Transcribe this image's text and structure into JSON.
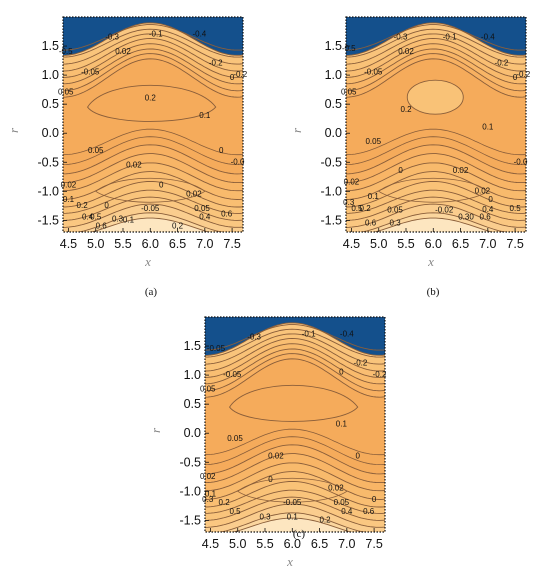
{
  "chart_data": [
    {
      "type": "contour",
      "caption": "(a)",
      "xlabel": "x",
      "ylabel": "r",
      "xlim": [
        4.4,
        7.7
      ],
      "ylim": [
        -1.7,
        2.0
      ],
      "xticks": [
        "4.5",
        "5.0",
        "5.5",
        "6.0",
        "6.5",
        "7.0",
        "7.5"
      ],
      "yticks": [
        "1.5",
        "1.0",
        "0.5",
        "0.0",
        "-0.5",
        "-1.0",
        "-1.5"
      ],
      "contour_labels": [
        {
          "text": "-0.3",
          "x": 5.3,
          "y": 1.65
        },
        {
          "text": "-0.1",
          "x": 6.1,
          "y": 1.7
        },
        {
          "text": "-0.4",
          "x": 6.9,
          "y": 1.7
        },
        {
          "text": "-0.5",
          "x": 4.45,
          "y": 1.4
        },
        {
          "text": "0.02",
          "x": 5.5,
          "y": 1.4
        },
        {
          "text": "-0.2",
          "x": 7.2,
          "y": 1.2
        },
        {
          "text": "-0.05",
          "x": 4.9,
          "y": 1.05
        },
        {
          "text": "0",
          "x": 7.5,
          "y": 0.95
        },
        {
          "text": "-0.2",
          "x": 7.65,
          "y": 1.0
        },
        {
          "text": "0.05",
          "x": 4.45,
          "y": 0.7
        },
        {
          "text": "0.2",
          "x": 6.0,
          "y": 0.6
        },
        {
          "text": "0.1",
          "x": 7.0,
          "y": 0.3
        },
        {
          "text": "0.05",
          "x": 5.0,
          "y": -0.3
        },
        {
          "text": "0",
          "x": 7.3,
          "y": -0.3
        },
        {
          "text": "0.02",
          "x": 5.7,
          "y": -0.55
        },
        {
          "text": "-0.0",
          "x": 7.6,
          "y": -0.5
        },
        {
          "text": "0.02",
          "x": 4.5,
          "y": -0.9
        },
        {
          "text": "0",
          "x": 6.2,
          "y": -0.9
        },
        {
          "text": "0.02",
          "x": 6.8,
          "y": -1.05
        },
        {
          "text": "0.1",
          "x": 4.5,
          "y": -1.15
        },
        {
          "text": "0.2",
          "x": 4.75,
          "y": -1.25
        },
        {
          "text": "0",
          "x": 5.2,
          "y": -1.25
        },
        {
          "text": "-0.05",
          "x": 6.0,
          "y": -1.3
        },
        {
          "text": "0.05",
          "x": 6.95,
          "y": -1.3
        },
        {
          "text": "0.4",
          "x": 4.85,
          "y": -1.45
        },
        {
          "text": "0.5",
          "x": 5.0,
          "y": -1.45
        },
        {
          "text": "0.3",
          "x": 5.4,
          "y": -1.48
        },
        {
          "text": "0.1",
          "x": 5.6,
          "y": -1.5
        },
        {
          "text": "0.4",
          "x": 7.0,
          "y": -1.45
        },
        {
          "text": "0.6",
          "x": 7.4,
          "y": -1.4
        },
        {
          "text": "0.6",
          "x": 5.1,
          "y": -1.6
        },
        {
          "text": "0.2",
          "x": 6.5,
          "y": -1.6
        }
      ]
    },
    {
      "type": "contour",
      "caption": "(b)",
      "xlabel": "x",
      "ylabel": "r",
      "xlim": [
        4.4,
        7.7
      ],
      "ylim": [
        -1.7,
        2.0
      ],
      "xticks": [
        "4.5",
        "5.0",
        "5.5",
        "6.0",
        "6.5",
        "7.0",
        "7.5"
      ],
      "yticks": [
        "1.5",
        "1.0",
        "0.5",
        "0.0",
        "-0.5",
        "-1.0",
        "-1.5"
      ],
      "contour_labels": [
        {
          "text": "-0.3",
          "x": 5.4,
          "y": 1.65
        },
        {
          "text": "-0.1",
          "x": 6.3,
          "y": 1.65
        },
        {
          "text": "-0.4",
          "x": 7.0,
          "y": 1.65
        },
        {
          "text": "-0.5",
          "x": 4.45,
          "y": 1.45
        },
        {
          "text": "0.02",
          "x": 5.5,
          "y": 1.4
        },
        {
          "text": "-0.2",
          "x": 7.25,
          "y": 1.2
        },
        {
          "text": "-0.05",
          "x": 4.9,
          "y": 1.05
        },
        {
          "text": "0",
          "x": 7.5,
          "y": 0.95
        },
        {
          "text": "-0.2",
          "x": 7.65,
          "y": 1.0
        },
        {
          "text": "0.05",
          "x": 4.45,
          "y": 0.7
        },
        {
          "text": "0.2",
          "x": 5.5,
          "y": 0.4
        },
        {
          "text": "0.1",
          "x": 7.0,
          "y": 0.1
        },
        {
          "text": "0.05",
          "x": 4.9,
          "y": -0.15
        },
        {
          "text": "0.02",
          "x": 6.5,
          "y": -0.65
        },
        {
          "text": "0",
          "x": 5.4,
          "y": -0.65
        },
        {
          "text": "-0.0",
          "x": 7.6,
          "y": -0.5
        },
        {
          "text": "0.02",
          "x": 4.5,
          "y": -0.85
        },
        {
          "text": "0.02",
          "x": 6.9,
          "y": -1.0
        },
        {
          "text": "0.1",
          "x": 4.9,
          "y": -1.1
        },
        {
          "text": "0",
          "x": 7.05,
          "y": -1.15
        },
        {
          "text": "0.3",
          "x": 4.45,
          "y": -1.2
        },
        {
          "text": "0.5",
          "x": 4.6,
          "y": -1.3
        },
        {
          "text": "0.2",
          "x": 4.75,
          "y": -1.3
        },
        {
          "text": "0.05",
          "x": 5.3,
          "y": -1.33
        },
        {
          "text": "-0.02",
          "x": 6.2,
          "y": -1.33
        },
        {
          "text": "0.4",
          "x": 7.0,
          "y": -1.32
        },
        {
          "text": "0.5",
          "x": 7.5,
          "y": -1.3
        },
        {
          "text": "0.6",
          "x": 4.85,
          "y": -1.55
        },
        {
          "text": "0.3",
          "x": 5.3,
          "y": -1.55
        },
        {
          "text": "0.30",
          "x": 6.6,
          "y": -1.45
        },
        {
          "text": "0.6",
          "x": 6.95,
          "y": -1.45
        }
      ]
    },
    {
      "type": "contour",
      "caption": "(c)",
      "xlabel": "x",
      "ylabel": "r",
      "xlim": [
        4.4,
        7.7
      ],
      "ylim": [
        -1.7,
        2.0
      ],
      "xticks": [
        "4.5",
        "5.0",
        "5.5",
        "6.0",
        "6.5",
        "7.0",
        "7.5"
      ],
      "yticks": [
        "1.5",
        "1.0",
        "0.5",
        "0.0",
        "-0.5",
        "-1.0",
        "-1.5"
      ],
      "contour_labels": [
        {
          "text": "-0.3",
          "x": 5.3,
          "y": 1.65
        },
        {
          "text": "-0.1",
          "x": 6.3,
          "y": 1.7
        },
        {
          "text": "-0.4",
          "x": 7.0,
          "y": 1.7
        },
        {
          "text": "-0.05",
          "x": 4.6,
          "y": 1.45
        },
        {
          "text": "-0.2",
          "x": 7.25,
          "y": 1.2
        },
        {
          "text": "-0.05",
          "x": 4.9,
          "y": 1.0
        },
        {
          "text": "0",
          "x": 6.9,
          "y": 1.05
        },
        {
          "text": "-0.2",
          "x": 7.6,
          "y": 1.0
        },
        {
          "text": "0.05",
          "x": 4.45,
          "y": 0.75
        },
        {
          "text": "0.1",
          "x": 6.9,
          "y": 0.15
        },
        {
          "text": "0.05",
          "x": 4.95,
          "y": -0.1
        },
        {
          "text": "0.02",
          "x": 5.7,
          "y": -0.4
        },
        {
          "text": "0",
          "x": 7.2,
          "y": -0.4
        },
        {
          "text": "0.02",
          "x": 4.45,
          "y": -0.75
        },
        {
          "text": "0",
          "x": 5.6,
          "y": -0.8
        },
        {
          "text": "0.02",
          "x": 6.8,
          "y": -0.95
        },
        {
          "text": "0.1",
          "x": 4.5,
          "y": -1.05
        },
        {
          "text": "0",
          "x": 7.5,
          "y": -1.15
        },
        {
          "text": "0.3",
          "x": 4.45,
          "y": -1.15
        },
        {
          "text": "0.2",
          "x": 4.75,
          "y": -1.2
        },
        {
          "text": "-0.05",
          "x": 6.0,
          "y": -1.2
        },
        {
          "text": "0.05",
          "x": 6.9,
          "y": -1.2
        },
        {
          "text": "0.5",
          "x": 4.95,
          "y": -1.35
        },
        {
          "text": "0.4",
          "x": 7.0,
          "y": -1.35
        },
        {
          "text": "0.6",
          "x": 7.4,
          "y": -1.35
        },
        {
          "text": "0.3",
          "x": 5.5,
          "y": -1.45
        },
        {
          "text": "0.1",
          "x": 6.0,
          "y": -1.45
        },
        {
          "text": "0.2",
          "x": 6.6,
          "y": -1.5
        }
      ]
    }
  ],
  "colors": {
    "top_fill": "#14508c",
    "bands": [
      "#f5ab5b",
      "#f7b061",
      "#f8b566",
      "#f8ba6c",
      "#f9be72",
      "#f9c277",
      "#f9c47b",
      "#fac781",
      "#facd8e",
      "#fbd69e",
      "#fde6c0",
      "#fef5e3"
    ],
    "contour_line": "#8a5e3a",
    "frame": "#111111"
  }
}
